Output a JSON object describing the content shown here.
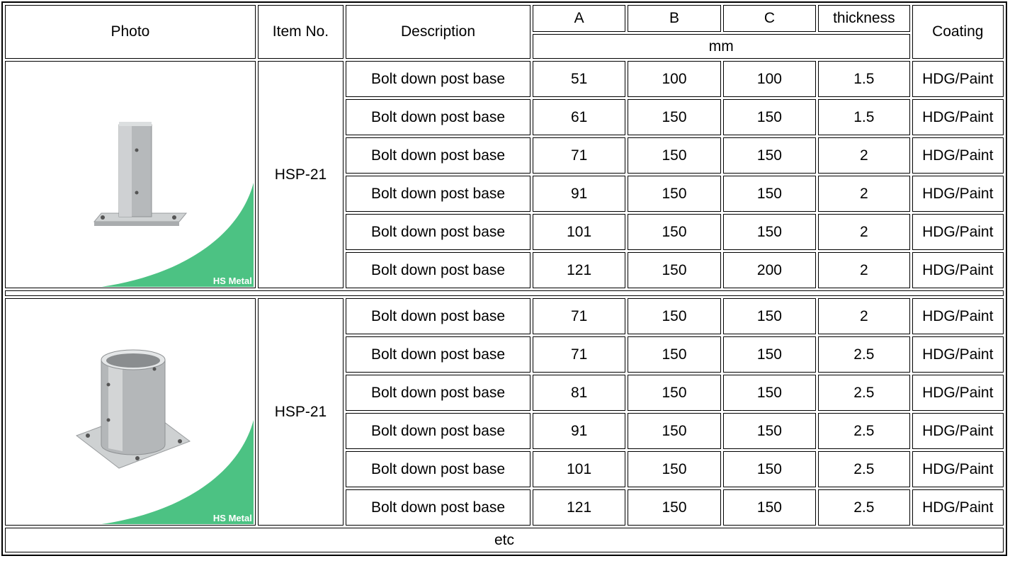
{
  "header": {
    "photo": "Photo",
    "item_no": "Item No.",
    "description": "Description",
    "col_a": "A",
    "col_b": "B",
    "col_c": "C",
    "col_thickness": "thickness",
    "coating": "Coating",
    "unit": "mm"
  },
  "groups": [
    {
      "item_no": "HSP-21",
      "watermark": "HS Metal",
      "photo_icon": "square-post-base-photo",
      "rows": [
        {
          "description": "Bolt down post base",
          "a": "51",
          "b": "100",
          "c": "100",
          "thickness": "1.5",
          "coating": "HDG/Paint"
        },
        {
          "description": "Bolt down post base",
          "a": "61",
          "b": "150",
          "c": "150",
          "thickness": "1.5",
          "coating": "HDG/Paint"
        },
        {
          "description": "Bolt down post base",
          "a": "71",
          "b": "150",
          "c": "150",
          "thickness": "2",
          "coating": "HDG/Paint"
        },
        {
          "description": "Bolt down post base",
          "a": "91",
          "b": "150",
          "c": "150",
          "thickness": "2",
          "coating": "HDG/Paint"
        },
        {
          "description": "Bolt down post base",
          "a": "101",
          "b": "150",
          "c": "150",
          "thickness": "2",
          "coating": "HDG/Paint"
        },
        {
          "description": "Bolt down post base",
          "a": "121",
          "b": "150",
          "c": "200",
          "thickness": "2",
          "coating": "HDG/Paint"
        }
      ]
    },
    {
      "item_no": "HSP-21",
      "watermark": "HS Metal",
      "photo_icon": "round-post-base-photo",
      "rows": [
        {
          "description": "Bolt down post base",
          "a": "71",
          "b": "150",
          "c": "150",
          "thickness": "2",
          "coating": "HDG/Paint"
        },
        {
          "description": "Bolt down post base",
          "a": "71",
          "b": "150",
          "c": "150",
          "thickness": "2.5",
          "coating": "HDG/Paint"
        },
        {
          "description": "Bolt down post base",
          "a": "81",
          "b": "150",
          "c": "150",
          "thickness": "2.5",
          "coating": "HDG/Paint"
        },
        {
          "description": "Bolt down post base",
          "a": "91",
          "b": "150",
          "c": "150",
          "thickness": "2.5",
          "coating": "HDG/Paint"
        },
        {
          "description": "Bolt down post base",
          "a": "101",
          "b": "150",
          "c": "150",
          "thickness": "2.5",
          "coating": "HDG/Paint"
        },
        {
          "description": "Bolt down post base",
          "a": "121",
          "b": "150",
          "c": "150",
          "thickness": "2.5",
          "coating": "HDG/Paint"
        }
      ]
    }
  ],
  "footer": "etc",
  "colors": {
    "accent_green": "#4cc283",
    "metal": "#b9bcbe"
  }
}
